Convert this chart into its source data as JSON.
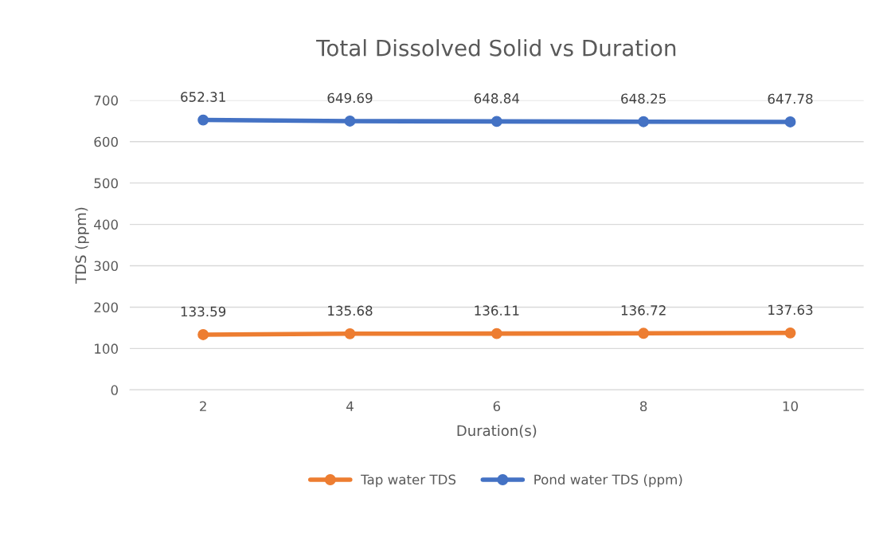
{
  "chart_data": {
    "type": "line",
    "title": "Total Dissolved Solid vs Duration",
    "xlabel": "Duration(s)",
    "ylabel": "TDS (ppm)",
    "categories": [
      "2",
      "4",
      "6",
      "8",
      "10"
    ],
    "series": [
      {
        "name": "Tap water TDS",
        "color": "#ed7d31",
        "values": [
          133.59,
          135.68,
          136.11,
          136.72,
          137.63
        ]
      },
      {
        "name": "Pond water TDS (ppm)",
        "color": "#4472c4",
        "values": [
          652.31,
          649.69,
          648.84,
          648.25,
          647.78
        ]
      }
    ],
    "ylim": [
      0,
      700
    ],
    "yticks": [
      0,
      100,
      200,
      300,
      400,
      500,
      600,
      700
    ],
    "grid": "y",
    "legend": "bottom",
    "marker": "circle",
    "line_style": "solid",
    "data_labels": true
  }
}
